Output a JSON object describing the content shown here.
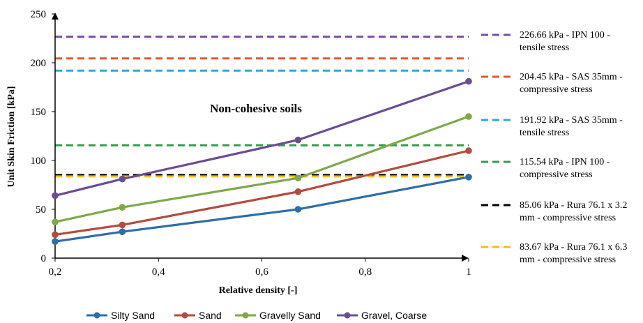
{
  "chart_data": {
    "type": "line",
    "title": "",
    "annotation": "Non-cohesive soils",
    "xlabel": "Relative density [-]",
    "ylabel": "Unit Skin Friction [kPa]",
    "xlim": [
      0.2,
      1.0
    ],
    "ylim": [
      0,
      250
    ],
    "x_ticks": [
      "0,2",
      "0,4",
      "0,6",
      "0,8",
      "1"
    ],
    "x_tick_values": [
      0.2,
      0.4,
      0.6,
      0.8,
      1.0
    ],
    "y_ticks": [
      "0",
      "50",
      "100",
      "150",
      "200",
      "250"
    ],
    "y_tick_values": [
      0,
      50,
      100,
      150,
      200,
      250
    ],
    "grid": false,
    "series": [
      {
        "name": "Silty Sand",
        "color": "#2e6ea6",
        "x": [
          0.2,
          0.33,
          0.67,
          1.0
        ],
        "values": [
          17,
          27,
          50,
          83
        ]
      },
      {
        "name": "Sand",
        "color": "#b34b3e",
        "x": [
          0.2,
          0.33,
          0.67,
          1.0
        ],
        "values": [
          24,
          34,
          68,
          110
        ]
      },
      {
        "name": "Gravelly Sand",
        "color": "#7fa84a",
        "x": [
          0.2,
          0.33,
          0.67,
          1.0
        ],
        "values": [
          37,
          52,
          82,
          145
        ]
      },
      {
        "name": "Gravel, Coarse",
        "color": "#6a4c93",
        "x": [
          0.2,
          0.33,
          0.67,
          1.0
        ],
        "values": [
          64,
          81,
          121,
          181
        ]
      }
    ],
    "reference_lines": [
      {
        "value": 226.66,
        "color": "#7a4bab",
        "label": [
          "226.66 kPa - IPN 100 -",
          "tensile stress"
        ]
      },
      {
        "value": 204.45,
        "color": "#e4582b",
        "label": [
          "204.45 kPa - SAS 35mm -",
          "compressive stress"
        ]
      },
      {
        "value": 191.92,
        "color": "#2ea6dd",
        "label": [
          "191.92 kPa - SAS 35mm -",
          "tensile stress"
        ]
      },
      {
        "value": 115.54,
        "color": "#2b9f48",
        "label": [
          "115.54 kPa - IPN 100 -",
          "compressive stress"
        ]
      },
      {
        "value": 85.06,
        "color": "#000000",
        "label": [
          "85.06 kPa - Rura 76.1 x 3.2",
          "mm - compressive stress"
        ]
      },
      {
        "value": 83.67,
        "color": "#f5be1b",
        "label": [
          "83.67 kPa - Rura 76.1 x 6.3",
          "mm - compressive stress"
        ]
      }
    ],
    "legend_position": "bottom"
  }
}
